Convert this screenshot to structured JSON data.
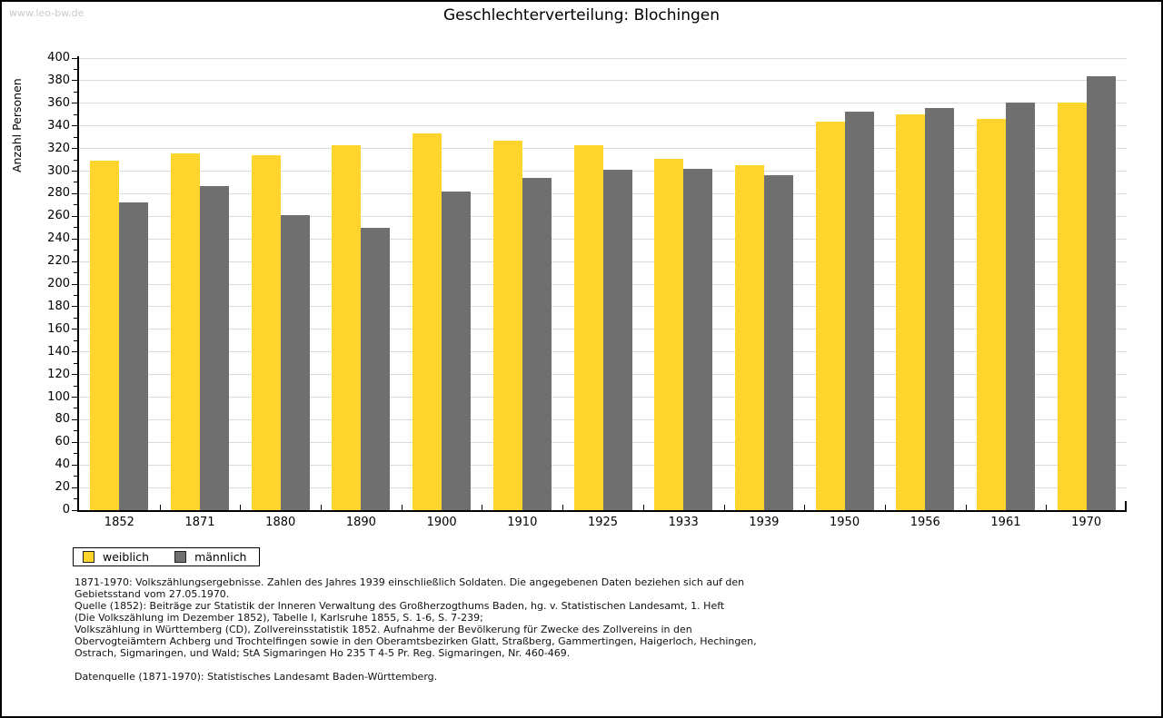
{
  "watermark": "www.leo-bw.de",
  "chart_data": {
    "type": "bar",
    "title": "Geschlechterverteilung: Blochingen",
    "xlabel": "",
    "ylabel": "Anzahl Personen",
    "ylim": [
      0,
      400
    ],
    "ytick_step": 20,
    "ytick_minor_step": 10,
    "grid": true,
    "legend_position": "bottom-left",
    "categories": [
      "1852",
      "1871",
      "1880",
      "1890",
      "1900",
      "1910",
      "1925",
      "1933",
      "1939",
      "1950",
      "1956",
      "1961",
      "1970"
    ],
    "series": [
      {
        "name": "weiblich",
        "color": "#FDD52D",
        "values": [
          309,
          316,
          314,
          323,
          333,
          327,
          323,
          311,
          305,
          344,
          350,
          346,
          361
        ]
      },
      {
        "name": "männlich",
        "color": "#6F6F6F",
        "values": [
          272,
          287,
          261,
          250,
          282,
          294,
          301,
          302,
          296,
          353,
          356,
          361,
          384
        ]
      }
    ]
  },
  "footer": {
    "lines": [
      "1871-1970: Volkszählungsergebnisse. Zahlen des Jahres 1939 einschließlich Soldaten. Die angegebenen Daten beziehen sich auf den",
      "Gebietsstand vom 27.05.1970.",
      "Quelle (1852): Beiträge zur Statistik der Inneren Verwaltung des Großherzogthums Baden, hg. v. Statistischen Landesamt, 1. Heft",
      "(Die Volkszählung im Dezember 1852), Tabelle I, Karlsruhe 1855, S. 1-6, S. 7-239;",
      "Volkszählung in Württemberg (CD), Zollvereinsstatistik 1852. Aufnahme der Bevölkerung für Zwecke des Zollvereins in den",
      "Obervogteiämtern Achberg und Trochtelfingen sowie in den Oberamtsbezirken Glatt, Straßberg, Gammertingen, Haigerloch, Hechingen,",
      "Ostrach, Sigmaringen, und Wald; StA Sigmaringen Ho 235 T 4-5 Pr. Reg. Sigmaringen, Nr. 460-469."
    ],
    "datasource": "Datenquelle (1871-1970): Statistisches Landesamt Baden-Württemberg."
  },
  "colors": {
    "weiblich": "#FDD52D",
    "maennlich": "#6F6F6F",
    "gridline": "#dcdcdc",
    "watermark": "#c9c9c9",
    "axis": "#000000"
  }
}
